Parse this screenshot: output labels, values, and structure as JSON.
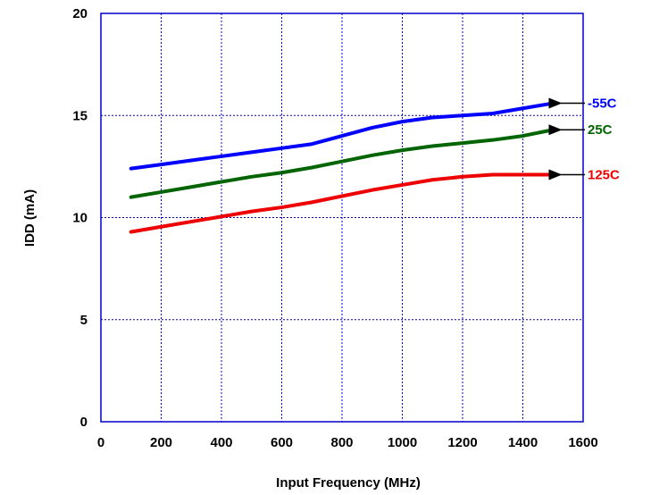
{
  "chart_data": {
    "type": "line",
    "title": "",
    "xlabel": "Input Frequency (MHz)",
    "ylabel": "IDD (mA)",
    "xlim": [
      0,
      1600
    ],
    "ylim": [
      0,
      20
    ],
    "x_ticks": [
      "0",
      "200",
      "400",
      "600",
      "800",
      "1000",
      "1200",
      "1400",
      "1600"
    ],
    "y_ticks": [
      "0",
      "5",
      "10",
      "15",
      "20"
    ],
    "grid": true,
    "series": [
      {
        "name": "-55C",
        "color": "#0000ff",
        "x": [
          100,
          200,
          300,
          400,
          500,
          600,
          700,
          800,
          900,
          1000,
          1100,
          1200,
          1300,
          1400,
          1500
        ],
        "values": [
          12.4,
          12.6,
          12.8,
          13.0,
          13.2,
          13.4,
          13.6,
          14.0,
          14.4,
          14.7,
          14.9,
          15.0,
          15.1,
          15.35,
          15.6
        ]
      },
      {
        "name": "25C",
        "color": "#006400",
        "x": [
          100,
          200,
          300,
          400,
          500,
          600,
          700,
          800,
          900,
          1000,
          1100,
          1200,
          1300,
          1400,
          1500
        ],
        "values": [
          11.0,
          11.25,
          11.5,
          11.75,
          12.0,
          12.2,
          12.45,
          12.75,
          13.05,
          13.3,
          13.5,
          13.65,
          13.8,
          14.0,
          14.3
        ]
      },
      {
        "name": "125C",
        "color": "#ee0000",
        "x": [
          100,
          200,
          300,
          400,
          500,
          600,
          700,
          800,
          900,
          1000,
          1100,
          1200,
          1300,
          1400,
          1500
        ],
        "values": [
          9.3,
          9.55,
          9.8,
          10.05,
          10.3,
          10.5,
          10.75,
          11.05,
          11.35,
          11.6,
          11.85,
          12.0,
          12.1,
          12.1,
          12.1
        ]
      }
    ]
  }
}
